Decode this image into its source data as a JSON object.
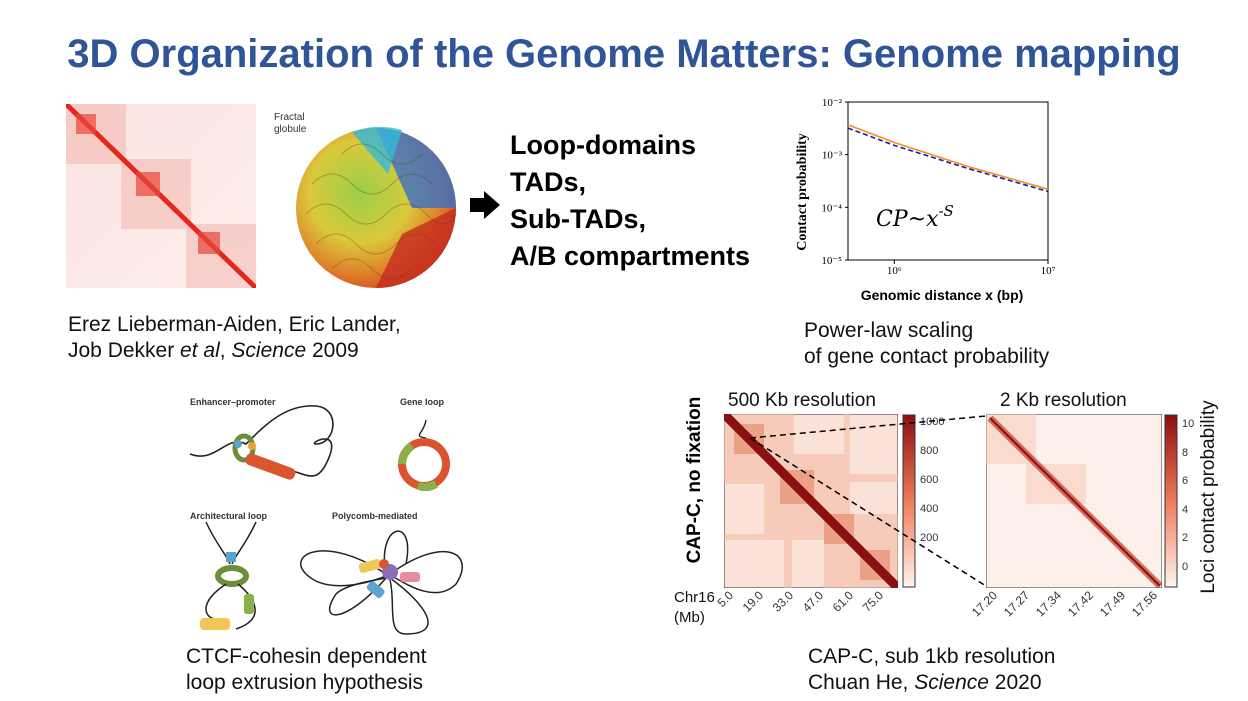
{
  "title": "3D Organization of the Genome Matters: Genome mapping",
  "hic": {
    "globule_label_1": "Fractal",
    "globule_label_2": "globule",
    "caption_line1": "Erez Lieberman-Aiden, Eric Lander,",
    "caption_line2_a": "Job Dekker ",
    "caption_line2_b": "et al",
    "caption_line2_c": ", ",
    "caption_line2_d": "Science",
    "caption_line2_e": " 2009"
  },
  "structures": [
    "Loop-domains",
    "TADs,",
    "Sub-TADs,",
    "A/B compartments"
  ],
  "powerlaw": {
    "ylabel": "Contact probability",
    "xlabel": "Genomic distance x (bp)",
    "formula": "CP~x",
    "formula_exp": "-S",
    "yticks": [
      "10⁻²",
      "10⁻³",
      "10⁻⁴",
      "10⁻⁵"
    ],
    "xticks": [
      "10⁶",
      "10⁷"
    ],
    "caption_line1": "Power-law scaling",
    "caption_line2": "of gene contact probability",
    "colors": {
      "series_a": "#f28e2b",
      "series_b": "#1f1f8f"
    }
  },
  "chart_data": {
    "type": "line",
    "xlabel": "Genomic distance x (bp)",
    "ylabel": "Contact probability",
    "log_x": true,
    "log_y": true,
    "xlim": [
      500000,
      10000000
    ],
    "ylim": [
      1e-05,
      0.01
    ],
    "series": [
      {
        "x": [
          500000,
          1000000,
          3000000,
          10000000
        ],
        "values": [
          0.0037,
          0.0017,
          0.0006,
          0.00022
        ]
      },
      {
        "x": [
          500000,
          1000000,
          3000000,
          10000000
        ],
        "values": [
          0.0032,
          0.0015,
          0.00055,
          0.0002
        ]
      }
    ]
  },
  "loops": {
    "enhancer_label": "Enhancer–promoter",
    "gene_loop_label": "Gene loop",
    "architectural_label": "Architectural loop",
    "polycomb_label": "Polycomb-mediated",
    "caption_line1": "CTCF-cohesin dependent",
    "caption_line2": "loop extrusion hypothesis"
  },
  "capc": {
    "res1": "500 Kb resolution",
    "res2": "2 Kb resolution",
    "side_label": "CAP-C, no fixation",
    "cbar1_ticks": [
      "1000",
      "800",
      "600",
      "400",
      "200"
    ],
    "cbar2_ticks": [
      "10",
      "8",
      "6",
      "4",
      "2",
      "0"
    ],
    "cbar_label": "Loci contact probability",
    "chr": "Chr16",
    "mb": "(Mb)",
    "x1_ticks": [
      "5.0",
      "19.0",
      "33.0",
      "47.0",
      "61.0",
      "75.0"
    ],
    "x2_ticks": [
      "17.20",
      "17.27",
      "17.34",
      "17.42",
      "17.49",
      "17.56"
    ],
    "caption_line1": "CAP-C, sub 1kb resolution",
    "caption_line2_a": "Chuan He, ",
    "caption_line2_b": "Science",
    "caption_line2_c": " 2020"
  }
}
